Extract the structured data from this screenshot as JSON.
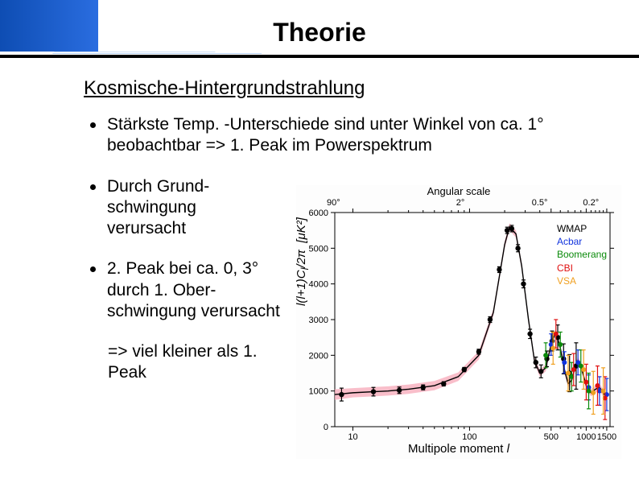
{
  "title": "Theorie",
  "subtitle": "Kosmische-Hintergrundstrahlung",
  "bullets": [
    "Stärkste Temp. -Unterschiede sind unter Winkel von ca. 1° beobachtbar  => 1. Peak im Powerspektrum",
    "Durch Grund-\nschwingung\nverursacht",
    "2. Peak bei ca. 0, 3° durch 1. Ober-\nschwingung verursacht"
  ],
  "conclusion": "=> viel kleiner als 1. Peak",
  "chart": {
    "type": "line-scatter",
    "xscale": "log",
    "xlim": [
      7,
      1600
    ],
    "ylim": [
      0,
      6000
    ],
    "xticks": [
      10,
      100,
      500,
      1000,
      1500
    ],
    "yticks": [
      0,
      1000,
      2000,
      3000,
      4000,
      5000,
      6000
    ],
    "top_axis_label": "Angular scale",
    "top_ticks": [
      {
        "label": "90°",
        "x": 7
      },
      {
        "label": "2°",
        "x": 90
      },
      {
        "label": "0.5°",
        "x": 400
      },
      {
        "label": "0.2°",
        "x": 1100
      }
    ],
    "xlabel": "Multipole moment l",
    "ylabel": "l(l+1)C_l / 2π  [μK²]",
    "background_color": "#ffffff",
    "axis_color": "#000000",
    "model_line_color": "#000000",
    "band_color": "#f7a8b8",
    "band_opacity": 0.75,
    "model_x": [
      7,
      10,
      15,
      20,
      30,
      50,
      80,
      120,
      160,
      200,
      220,
      250,
      280,
      320,
      360,
      400,
      450,
      500,
      540,
      560,
      600,
      650,
      700,
      750,
      800,
      850,
      900,
      1000,
      1100,
      1200,
      1300,
      1400,
      1500
    ],
    "model_y": [
      900,
      950,
      980,
      1000,
      1050,
      1150,
      1400,
      2000,
      3200,
      5100,
      5600,
      5400,
      4500,
      3000,
      1850,
      1500,
      1650,
      2300,
      2600,
      2550,
      2200,
      1600,
      1200,
      1300,
      1650,
      1850,
      1700,
      1150,
      950,
      1050,
      1100,
      950,
      800
    ],
    "band_hi": [
      1050,
      1080,
      1110,
      1130,
      1180,
      1280,
      1520,
      2120,
      3300,
      5200,
      5700,
      5500,
      4600,
      3100,
      1950,
      1600,
      1750,
      2400,
      2700,
      2650,
      2300,
      1700,
      1300,
      1400,
      1750,
      1950,
      1800,
      1250,
      1050,
      1150,
      1200,
      1050,
      900
    ],
    "band_lo": [
      750,
      820,
      850,
      870,
      920,
      1020,
      1280,
      1880,
      3100,
      5000,
      5500,
      5300,
      4400,
      2900,
      1750,
      1400,
      1550,
      2200,
      2500,
      2450,
      2100,
      1500,
      1100,
      1200,
      1550,
      1750,
      1600,
      1050,
      850,
      950,
      1000,
      850,
      700
    ],
    "series": [
      {
        "name": "WMAP",
        "color": "#000000",
        "marker": "circle",
        "size": 3.2,
        "points": [
          {
            "x": 8,
            "y": 900,
            "elo": 180,
            "ehi": 180
          },
          {
            "x": 15,
            "y": 980,
            "elo": 120,
            "ehi": 120
          },
          {
            "x": 25,
            "y": 1020,
            "elo": 90,
            "ehi": 90
          },
          {
            "x": 40,
            "y": 1100,
            "elo": 70,
            "ehi": 70
          },
          {
            "x": 60,
            "y": 1200,
            "elo": 60,
            "ehi": 60
          },
          {
            "x": 90,
            "y": 1600,
            "elo": 60,
            "ehi": 60
          },
          {
            "x": 120,
            "y": 2100,
            "elo": 70,
            "ehi": 70
          },
          {
            "x": 150,
            "y": 3000,
            "elo": 80,
            "ehi": 80
          },
          {
            "x": 180,
            "y": 4400,
            "elo": 80,
            "ehi": 80
          },
          {
            "x": 210,
            "y": 5500,
            "elo": 90,
            "ehi": 90
          },
          {
            "x": 230,
            "y": 5550,
            "elo": 90,
            "ehi": 90
          },
          {
            "x": 260,
            "y": 5000,
            "elo": 100,
            "ehi": 100
          },
          {
            "x": 290,
            "y": 4000,
            "elo": 110,
            "ehi": 110
          },
          {
            "x": 330,
            "y": 2600,
            "elo": 130,
            "ehi": 130
          },
          {
            "x": 370,
            "y": 1800,
            "elo": 150,
            "ehi": 150
          },
          {
            "x": 410,
            "y": 1550,
            "elo": 180,
            "ehi": 180
          },
          {
            "x": 460,
            "y": 1900,
            "elo": 220,
            "ehi": 220
          },
          {
            "x": 510,
            "y": 2400,
            "elo": 280,
            "ehi": 280
          },
          {
            "x": 570,
            "y": 2500,
            "elo": 350,
            "ehi": 350
          },
          {
            "x": 640,
            "y": 1900,
            "elo": 420,
            "ehi": 420
          },
          {
            "x": 720,
            "y": 1500,
            "elo": 520,
            "ehi": 520
          },
          {
            "x": 820,
            "y": 1700,
            "elo": 650,
            "ehi": 650
          }
        ]
      },
      {
        "name": "Acbar",
        "color": "#1133dd",
        "marker": "circle",
        "size": 3,
        "points": [
          {
            "x": 500,
            "y": 2300,
            "elo": 300,
            "ehi": 300
          },
          {
            "x": 650,
            "y": 1800,
            "elo": 300,
            "ehi": 300
          },
          {
            "x": 850,
            "y": 1800,
            "elo": 350,
            "ehi": 350
          },
          {
            "x": 1050,
            "y": 1100,
            "elo": 350,
            "ehi": 350
          },
          {
            "x": 1300,
            "y": 1000,
            "elo": 400,
            "ehi": 400
          },
          {
            "x": 1500,
            "y": 900,
            "elo": 450,
            "ehi": 450
          }
        ]
      },
      {
        "name": "Boomerang",
        "color": "#0a8a0a",
        "marker": "circle",
        "size": 3,
        "points": [
          {
            "x": 450,
            "y": 2000,
            "elo": 350,
            "ehi": 350
          },
          {
            "x": 600,
            "y": 2300,
            "elo": 350,
            "ehi": 350
          },
          {
            "x": 750,
            "y": 1400,
            "elo": 400,
            "ehi": 400
          },
          {
            "x": 900,
            "y": 1700,
            "elo": 450,
            "ehi": 450
          },
          {
            "x": 1050,
            "y": 1000,
            "elo": 500,
            "ehi": 500
          }
        ]
      },
      {
        "name": "CBI",
        "color": "#e01010",
        "marker": "circle",
        "size": 3,
        "points": [
          {
            "x": 550,
            "y": 2600,
            "elo": 400,
            "ehi": 400
          },
          {
            "x": 780,
            "y": 1600,
            "elo": 450,
            "ehi": 450
          },
          {
            "x": 1000,
            "y": 1250,
            "elo": 500,
            "ehi": 500
          },
          {
            "x": 1250,
            "y": 1150,
            "elo": 550,
            "ehi": 550
          },
          {
            "x": 1450,
            "y": 800,
            "elo": 600,
            "ehi": 600
          }
        ]
      },
      {
        "name": "VSA",
        "color": "#f0a020",
        "marker": "circle",
        "size": 3,
        "points": [
          {
            "x": 520,
            "y": 2200,
            "elo": 450,
            "ehi": 450
          },
          {
            "x": 700,
            "y": 1500,
            "elo": 500,
            "ehi": 500
          },
          {
            "x": 950,
            "y": 1600,
            "elo": 550,
            "ehi": 550
          },
          {
            "x": 1150,
            "y": 950,
            "elo": 600,
            "ehi": 600
          },
          {
            "x": 1400,
            "y": 1000,
            "elo": 650,
            "ehi": 650
          }
        ]
      }
    ],
    "legend_fontsize": 12
  }
}
